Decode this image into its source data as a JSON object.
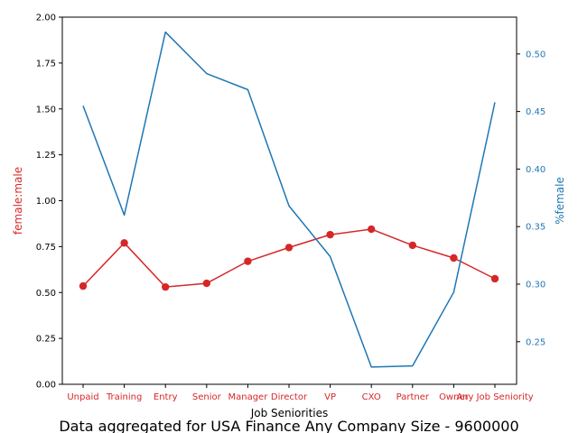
{
  "chart_data": {
    "type": "line",
    "categories": [
      "Unpaid",
      "Training",
      "Entry",
      "Senior",
      "Manager",
      "Director",
      "VP",
      "CXO",
      "Partner",
      "Owner",
      "Any Job Seniority"
    ],
    "xlabel": "Job Seniorities",
    "caption": "Data aggregated for USA Finance Any Company Size - 9600000",
    "left_axis": {
      "label": "female:male",
      "ylim": [
        0,
        2.0
      ],
      "ticks": [
        "0.00",
        "0.25",
        "0.50",
        "0.75",
        "1.00",
        "1.25",
        "1.50",
        "1.75",
        "2.00"
      ],
      "color": "#d62728"
    },
    "right_axis": {
      "label": "%female",
      "ylim": [
        0.213,
        0.532
      ],
      "ticks": [
        "0.25",
        "0.30",
        "0.35",
        "0.40",
        "0.45",
        "0.50"
      ],
      "color": "#1f77b4"
    },
    "series": [
      {
        "axis": "left",
        "color": "#d62728",
        "marker": "circle",
        "values": [
          0.535,
          0.77,
          0.53,
          0.55,
          0.67,
          0.745,
          0.815,
          0.845,
          0.757,
          0.688,
          0.575
        ]
      },
      {
        "axis": "right",
        "color": "#1f77b4",
        "marker": "none",
        "values": [
          0.455,
          0.36,
          0.519,
          0.483,
          0.469,
          0.368,
          0.324,
          0.228,
          0.229,
          0.293,
          0.458
        ]
      }
    ]
  }
}
